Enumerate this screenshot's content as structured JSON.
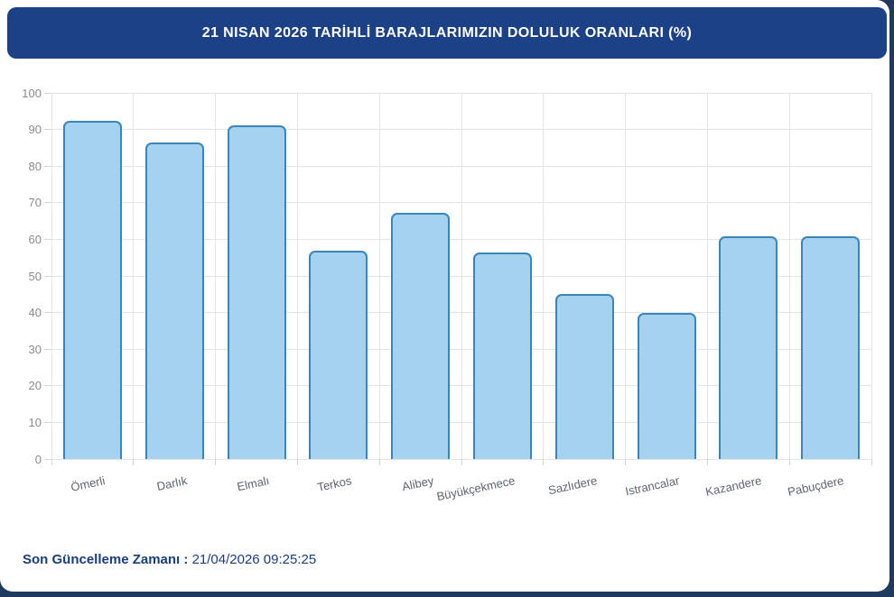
{
  "header": {
    "title": "21 NISAN 2026 TARİHLİ BARAJLARIMIZIN DOLULUK ORANLARI (%)"
  },
  "chart_data": {
    "type": "bar",
    "title": "21 NISAN 2026 TARİHLİ BARAJLARIMIZIN DOLULUK ORANLARI (%)",
    "categories": [
      "Ömerli",
      "Darlık",
      "Elmalı",
      "Terkos",
      "Alibey",
      "Büyükçekmece",
      "Sazlıdere",
      "Istrancalar",
      "Kazandere",
      "Pabuçdere"
    ],
    "values": [
      92.4,
      86.4,
      91.1,
      56.9,
      67.2,
      56.3,
      45.1,
      39.9,
      60.8,
      60.8
    ],
    "xlabel": "",
    "ylabel": "",
    "ylim": [
      0,
      100
    ],
    "ytick_step": 10,
    "yticks": [
      0,
      10,
      20,
      30,
      40,
      50,
      60,
      70,
      80,
      90,
      100
    ],
    "grid": true,
    "legend": false,
    "bar_fill": "#a5d3ef",
    "bar_border": "#3886ba"
  },
  "footer": {
    "label": "Son Güncelleme Zamanı",
    "separator": " : ",
    "value": "21/04/2026 09:25:25"
  },
  "colors": {
    "header_bg": "#1c4187",
    "page_bg": "#203a5e",
    "footer_text": "#1a3e7d",
    "gridline": "#e4e4e4"
  }
}
